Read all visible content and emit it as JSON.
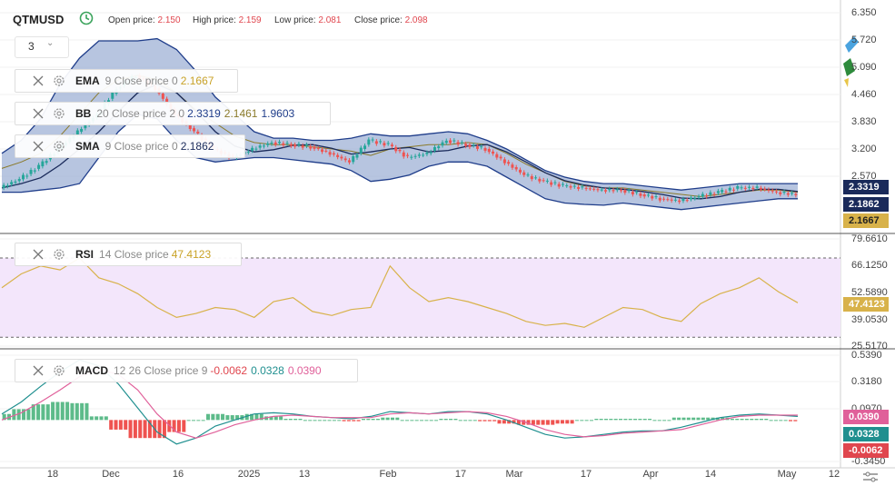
{
  "header": {
    "symbol": "QTMUSD",
    "open_label": "Open price:",
    "open_value": "2.150",
    "high_label": "High price:",
    "high_value": "2.159",
    "low_label": "Low price:",
    "low_value": "2.081",
    "close_label": "Close price:",
    "close_value": "2.098",
    "interval": "3"
  },
  "legends": {
    "ema": {
      "name": "EMA",
      "params": "9 Close price 0",
      "v1": "2.1667"
    },
    "bb": {
      "name": "BB",
      "params": "20 Close price 2 0",
      "v1": "2.3319",
      "v2": "2.1461",
      "v3": "1.9603"
    },
    "sma": {
      "name": "SMA",
      "params": "9 Close price 0",
      "v1": "2.1862"
    },
    "rsi": {
      "name": "RSI",
      "params": "14 Close price",
      "v1": "47.4123"
    },
    "macd": {
      "name": "MACD",
      "params": "12 26 Close price 9",
      "v1": "-0.0062",
      "v2": "0.0328",
      "v3": "0.0390"
    }
  },
  "colors": {
    "bb_band": "#1f3d8a",
    "bb_fill": "#9fb2d6",
    "bb_mid": "#8a7a2a",
    "rise": "#26a69a",
    "fall": "#ef5350",
    "rsi": "#d8b24a",
    "rsi_fill": "#f3e6fb",
    "macd_line": "#1f8f8f",
    "signal_line": "#e0609a",
    "ema": "#c9a227",
    "sma": "#1a2a5a"
  },
  "main_axis": {
    "ticks": [
      "6.350",
      "5.720",
      "5.090",
      "4.460",
      "3.830",
      "3.200",
      "2.570"
    ],
    "badges": [
      "2.3319",
      "2.1862",
      "2.1667"
    ]
  },
  "rsi_axis": {
    "ticks": [
      "79.6610",
      "66.1250",
      "52.5890",
      "39.0530",
      "25.5170"
    ],
    "badge": "47.4123",
    "upper_level": 70,
    "lower_level": 30
  },
  "macd_axis": {
    "ticks": [
      "0.5390",
      "0.3180",
      "0.0970",
      "-0.3450"
    ],
    "badges": [
      "0.0390",
      "0.0328",
      "-0.0062"
    ]
  },
  "x_axis": {
    "labels": [
      "18",
      "Dec",
      "16",
      "2025",
      "13",
      "Feb",
      "17",
      "Mar",
      "17",
      "Apr",
      "14",
      "May",
      "12"
    ]
  },
  "chart_data": {
    "type": "line",
    "pair": "QTMUSD",
    "bb_mid": [
      2.75,
      2.9,
      3.1,
      3.5,
      4.0,
      4.5,
      4.8,
      4.9,
      4.8,
      4.5,
      4.1,
      3.8,
      3.5,
      3.35,
      3.3,
      3.3,
      3.25,
      3.2,
      3.15,
      3.05,
      3.2,
      3.25,
      3.3,
      3.3,
      3.35,
      3.3,
      3.1,
      2.85,
      2.65,
      2.45,
      2.35,
      2.3,
      2.3,
      2.25,
      2.2,
      2.15,
      2.1,
      2.15,
      2.2,
      2.25,
      2.25,
      2.2
    ],
    "bb_upper": [
      3.1,
      3.4,
      3.9,
      4.7,
      5.3,
      5.7,
      5.7,
      5.7,
      5.75,
      5.5,
      5.0,
      4.4,
      4.0,
      3.6,
      3.45,
      3.45,
      3.4,
      3.4,
      3.45,
      3.55,
      3.5,
      3.5,
      3.55,
      3.6,
      3.55,
      3.4,
      3.2,
      2.95,
      2.7,
      2.55,
      2.45,
      2.4,
      2.4,
      2.35,
      2.3,
      2.25,
      2.3,
      2.35,
      2.4,
      2.4,
      2.4,
      2.4
    ],
    "bb_lower": [
      2.2,
      2.2,
      2.25,
      2.3,
      2.4,
      3.0,
      3.6,
      4.0,
      3.9,
      3.4,
      3.0,
      2.9,
      2.95,
      3.0,
      3.0,
      2.95,
      2.9,
      2.85,
      2.7,
      2.45,
      2.5,
      2.6,
      2.8,
      2.9,
      2.9,
      2.8,
      2.55,
      2.3,
      2.05,
      1.95,
      1.92,
      1.9,
      1.95,
      1.9,
      1.85,
      1.8,
      1.85,
      1.9,
      1.95,
      2.0,
      2.05,
      2.05
    ],
    "close": [
      2.3,
      2.5,
      2.8,
      3.2,
      3.6,
      4.0,
      4.6,
      4.9,
      4.6,
      4.0,
      3.6,
      3.2,
      3.0,
      3.2,
      3.35,
      3.3,
      3.25,
      3.1,
      2.9,
      3.4,
      3.3,
      3.0,
      3.1,
      3.4,
      3.3,
      3.2,
      2.9,
      2.6,
      2.45,
      2.35,
      2.3,
      2.25,
      2.25,
      2.15,
      2.05,
      2.0,
      2.1,
      2.2,
      2.3,
      2.3,
      2.2,
      2.15
    ],
    "rsi": [
      55,
      62,
      66,
      64,
      70,
      60,
      57,
      52,
      45,
      40,
      42,
      45,
      44,
      40,
      48,
      50,
      43,
      41,
      44,
      45,
      66,
      55,
      48,
      50,
      48,
      45,
      42,
      38,
      36,
      37,
      35,
      40,
      45,
      44,
      40,
      38,
      47,
      52,
      55,
      60,
      53,
      47.4
    ],
    "macd": [
      0.05,
      0.15,
      0.28,
      0.4,
      0.5,
      0.45,
      0.3,
      0.1,
      -0.1,
      -0.2,
      -0.15,
      -0.05,
      0.0,
      0.05,
      0.06,
      0.05,
      0.03,
      0.02,
      0.01,
      0.03,
      0.07,
      0.06,
      0.05,
      0.07,
      0.07,
      0.05,
      0.0,
      -0.06,
      -0.12,
      -0.15,
      -0.14,
      -0.12,
      -0.1,
      -0.09,
      -0.09,
      -0.06,
      -0.02,
      0.02,
      0.04,
      0.05,
      0.04,
      0.03
    ],
    "signal": [
      0.0,
      0.06,
      0.15,
      0.25,
      0.36,
      0.42,
      0.38,
      0.25,
      0.05,
      -0.1,
      -0.15,
      -0.1,
      -0.04,
      0.0,
      0.03,
      0.04,
      0.03,
      0.02,
      0.02,
      0.02,
      0.05,
      0.06,
      0.05,
      0.06,
      0.07,
      0.06,
      0.03,
      -0.02,
      -0.08,
      -0.12,
      -0.14,
      -0.13,
      -0.11,
      -0.1,
      -0.09,
      -0.08,
      -0.04,
      0.0,
      0.03,
      0.04,
      0.04,
      0.04
    ],
    "histogram_last": -0.0062,
    "x_ticks": [
      "18",
      "Dec",
      "16",
      "2025",
      "13",
      "Feb",
      "17",
      "Mar",
      "17",
      "Apr",
      "14",
      "May",
      "12"
    ]
  }
}
